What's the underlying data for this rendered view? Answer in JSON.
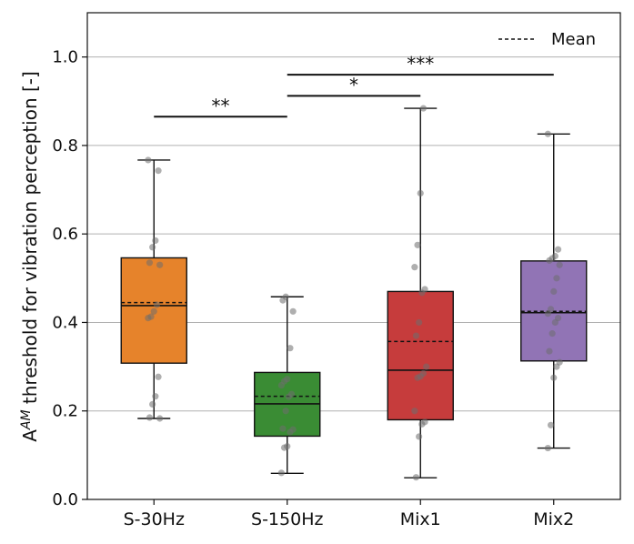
{
  "chart_data": {
    "type": "box",
    "ylabel_base": "A",
    "ylabel_sup": "AM",
    "ylabel_rest": " threshold for vibration perception [-]",
    "ylim": [
      0.0,
      1.1
    ],
    "yticks": [
      0.0,
      0.2,
      0.4,
      0.6,
      0.8,
      1.0
    ],
    "ytick_labels": [
      "0.0",
      "0.2",
      "0.4",
      "0.6",
      "0.8",
      "1.0"
    ],
    "grid": "horizontal",
    "legend": {
      "label": "Mean",
      "position": "top-right"
    },
    "categories": [
      "S-30Hz",
      "S-150Hz",
      "Mix1",
      "Mix2"
    ],
    "boxes": [
      {
        "name": "S-30Hz",
        "color": "#e6832b",
        "whisker_low": 0.183,
        "q1": 0.308,
        "median": 0.438,
        "mean": 0.445,
        "q3": 0.546,
        "whisker_high": 0.767,
        "points": [
          0.767,
          0.743,
          0.585,
          0.57,
          0.535,
          0.53,
          0.44,
          0.425,
          0.413,
          0.41,
          0.277,
          0.233,
          0.215,
          0.185,
          0.183
        ]
      },
      {
        "name": "S-150Hz",
        "color": "#3a8c34",
        "whisker_low": 0.059,
        "q1": 0.143,
        "median": 0.216,
        "mean": 0.233,
        "q3": 0.287,
        "whisker_high": 0.458,
        "points": [
          0.458,
          0.45,
          0.425,
          0.342,
          0.272,
          0.267,
          0.258,
          0.238,
          0.232,
          0.2,
          0.16,
          0.158,
          0.152,
          0.12,
          0.117,
          0.06
        ]
      },
      {
        "name": "Mix1",
        "color": "#c63c3c",
        "whisker_low": 0.049,
        "q1": 0.18,
        "median": 0.292,
        "mean": 0.357,
        "q3": 0.47,
        "whisker_high": 0.884,
        "points": [
          0.884,
          0.692,
          0.575,
          0.525,
          0.475,
          0.467,
          0.4,
          0.37,
          0.3,
          0.285,
          0.278,
          0.275,
          0.2,
          0.175,
          0.17,
          0.142,
          0.05
        ]
      },
      {
        "name": "Mix2",
        "color": "#9174b5",
        "whisker_low": 0.116,
        "q1": 0.313,
        "median": 0.422,
        "mean": 0.425,
        "q3": 0.539,
        "whisker_high": 0.826,
        "points": [
          0.826,
          0.565,
          0.55,
          0.545,
          0.54,
          0.53,
          0.5,
          0.47,
          0.43,
          0.42,
          0.41,
          0.4,
          0.375,
          0.335,
          0.31,
          0.3,
          0.275,
          0.168,
          0.116
        ]
      }
    ],
    "significance": [
      {
        "from": 0,
        "to": 1,
        "y": 0.865,
        "label": "**"
      },
      {
        "from": 1,
        "to": 2,
        "y": 0.912,
        "label": "*"
      },
      {
        "from": 1,
        "to": 3,
        "y": 0.96,
        "label": "***"
      }
    ]
  }
}
